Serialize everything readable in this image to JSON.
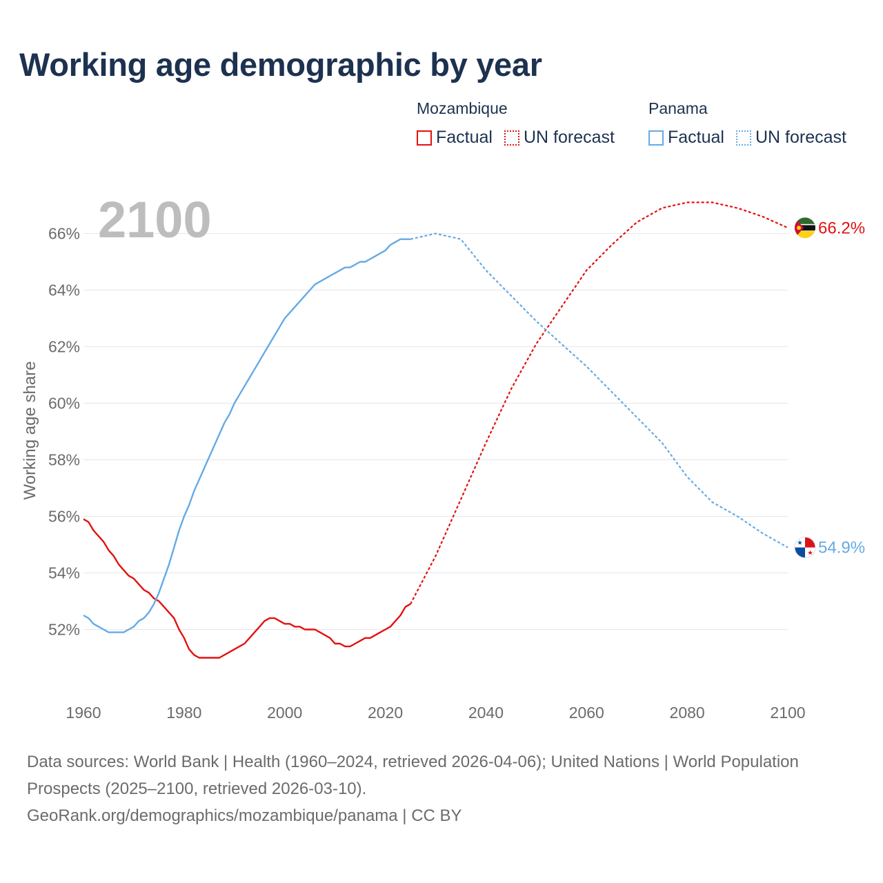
{
  "title": "Working age demographic by year",
  "legend": {
    "groups": [
      {
        "country": "Mozambique",
        "color": "#e3100f",
        "factual_label": "Factual",
        "forecast_label": "UN forecast"
      },
      {
        "country": "Panama",
        "color": "#64aae6",
        "factual_label": "Factual",
        "forecast_label": "UN forecast"
      }
    ]
  },
  "footer": {
    "sources": "Data sources: World Bank | Health (1960–2024, retrieved 2026-04-06); United Nations | World Population Prospects (2025–2100, retrieved 2026-03-10).",
    "credit": "GeoRank.org/demographics/mozambique/panama | CC BY"
  },
  "chart_data": {
    "type": "line",
    "title": "Working age demographic by year",
    "year_label": "2100",
    "ylabel": "Working age share",
    "xlim": [
      1960,
      2100
    ],
    "ylim": [
      50.0,
      67.5
    ],
    "yticks": [
      52,
      54,
      56,
      58,
      60,
      62,
      64,
      66
    ],
    "ytick_labels": [
      "52%",
      "54%",
      "56%",
      "58%",
      "60%",
      "62%",
      "64%",
      "66%"
    ],
    "xticks": [
      1960,
      1980,
      2000,
      2020,
      2040,
      2060,
      2080,
      2100
    ],
    "xtick_labels": [
      "1960",
      "1980",
      "2000",
      "2020",
      "2040",
      "2060",
      "2080",
      "2100"
    ],
    "grid": true,
    "series": [
      {
        "name": "Mozambique",
        "color": "#e3100f",
        "end_label": "66.2%",
        "factual": {
          "x": [
            1960,
            1961,
            1962,
            1963,
            1964,
            1965,
            1966,
            1967,
            1968,
            1969,
            1970,
            1971,
            1972,
            1973,
            1974,
            1975,
            1976,
            1977,
            1978,
            1979,
            1980,
            1981,
            1982,
            1983,
            1984,
            1985,
            1986,
            1987,
            1988,
            1989,
            1990,
            1991,
            1992,
            1993,
            1994,
            1995,
            1996,
            1997,
            1998,
            1999,
            2000,
            2001,
            2002,
            2003,
            2004,
            2005,
            2006,
            2007,
            2008,
            2009,
            2010,
            2011,
            2012,
            2013,
            2014,
            2015,
            2016,
            2017,
            2018,
            2019,
            2020,
            2021,
            2022,
            2023,
            2024,
            2025
          ],
          "y": [
            55.9,
            55.8,
            55.5,
            55.3,
            55.1,
            54.8,
            54.6,
            54.3,
            54.1,
            53.9,
            53.8,
            53.6,
            53.4,
            53.3,
            53.1,
            53.0,
            52.8,
            52.6,
            52.4,
            52.0,
            51.7,
            51.3,
            51.1,
            51.0,
            51.0,
            51.0,
            51.0,
            51.0,
            51.1,
            51.2,
            51.3,
            51.4,
            51.5,
            51.7,
            51.9,
            52.1,
            52.3,
            52.4,
            52.4,
            52.3,
            52.2,
            52.2,
            52.1,
            52.1,
            52.0,
            52.0,
            52.0,
            51.9,
            51.8,
            51.7,
            51.5,
            51.5,
            51.4,
            51.4,
            51.5,
            51.6,
            51.7,
            51.7,
            51.8,
            51.9,
            52.0,
            52.1,
            52.3,
            52.5,
            52.8,
            52.9
          ]
        },
        "forecast": {
          "x": [
            2025,
            2030,
            2035,
            2040,
            2045,
            2050,
            2055,
            2060,
            2065,
            2070,
            2075,
            2080,
            2085,
            2090,
            2095,
            2100
          ],
          "y": [
            52.9,
            54.6,
            56.6,
            58.6,
            60.5,
            62.1,
            63.4,
            64.7,
            65.6,
            66.4,
            66.9,
            67.1,
            67.1,
            66.9,
            66.6,
            66.2
          ]
        }
      },
      {
        "name": "Panama",
        "color": "#64aae6",
        "end_label": "54.9%",
        "factual": {
          "x": [
            1960,
            1961,
            1962,
            1963,
            1964,
            1965,
            1966,
            1967,
            1968,
            1969,
            1970,
            1971,
            1972,
            1973,
            1974,
            1975,
            1976,
            1977,
            1978,
            1979,
            1980,
            1981,
            1982,
            1983,
            1984,
            1985,
            1986,
            1987,
            1988,
            1989,
            1990,
            1991,
            1992,
            1993,
            1994,
            1995,
            1996,
            1997,
            1998,
            1999,
            2000,
            2001,
            2002,
            2003,
            2004,
            2005,
            2006,
            2007,
            2008,
            2009,
            2010,
            2011,
            2012,
            2013,
            2014,
            2015,
            2016,
            2017,
            2018,
            2019,
            2020,
            2021,
            2022,
            2023,
            2024,
            2025
          ],
          "y": [
            52.5,
            52.4,
            52.2,
            52.1,
            52.0,
            51.9,
            51.9,
            51.9,
            51.9,
            52.0,
            52.1,
            52.3,
            52.4,
            52.6,
            52.9,
            53.3,
            53.8,
            54.3,
            54.9,
            55.5,
            56.0,
            56.4,
            56.9,
            57.3,
            57.7,
            58.1,
            58.5,
            58.9,
            59.3,
            59.6,
            60.0,
            60.3,
            60.6,
            60.9,
            61.2,
            61.5,
            61.8,
            62.1,
            62.4,
            62.7,
            63.0,
            63.2,
            63.4,
            63.6,
            63.8,
            64.0,
            64.2,
            64.3,
            64.4,
            64.5,
            64.6,
            64.7,
            64.8,
            64.8,
            64.9,
            65.0,
            65.0,
            65.1,
            65.2,
            65.3,
            65.4,
            65.6,
            65.7,
            65.8,
            65.8,
            65.8
          ]
        },
        "forecast": {
          "x": [
            2025,
            2030,
            2035,
            2040,
            2045,
            2050,
            2055,
            2060,
            2065,
            2070,
            2075,
            2080,
            2085,
            2090,
            2095,
            2100
          ],
          "y": [
            65.8,
            66.0,
            65.8,
            64.7,
            63.8,
            62.9,
            62.1,
            61.3,
            60.4,
            59.5,
            58.6,
            57.4,
            56.5,
            56.0,
            55.4,
            54.9
          ]
        }
      }
    ]
  }
}
